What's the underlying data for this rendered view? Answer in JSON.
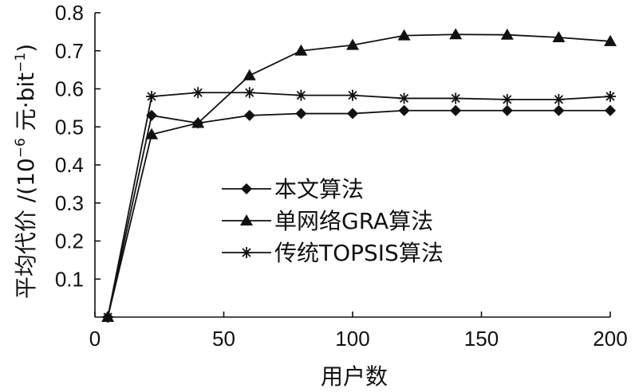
{
  "chart_data": {
    "type": "line",
    "xlabel": "用户数",
    "ylabel": "平均代价 /(10",
    "ylabel_exp": "−6",
    "ylabel_unit": " 元·bit",
    "ylabel_unit_exp": "−1",
    "ylabel_close": ")",
    "xlim": [
      0,
      200
    ],
    "ylim": [
      0,
      0.8
    ],
    "xticks": [
      0,
      50,
      100,
      150,
      200
    ],
    "xtick_labels": [
      "0",
      "50",
      "100",
      "150",
      "200"
    ],
    "yticks": [
      0.1,
      0.2,
      0.3,
      0.4,
      0.5,
      0.6,
      0.7,
      0.8
    ],
    "ytick_labels": [
      "0.1",
      "0.2",
      "0.3",
      "0.4",
      "0.5",
      "0.6",
      "0.7",
      "0.8"
    ],
    "grid": false,
    "legend_position": "center-right",
    "series": [
      {
        "name": "本文算法",
        "marker": "diamond",
        "color": "#111111",
        "x": [
          5,
          22,
          40,
          60,
          80,
          100,
          120,
          140,
          160,
          180,
          200
        ],
        "y": [
          0.0,
          0.53,
          0.51,
          0.53,
          0.535,
          0.535,
          0.543,
          0.543,
          0.543,
          0.543,
          0.543
        ]
      },
      {
        "name": "单网络GRA算法",
        "marker": "triangle",
        "color": "#111111",
        "x": [
          5,
          22,
          40,
          60,
          80,
          100,
          120,
          140,
          160,
          180,
          200
        ],
        "y": [
          0.0,
          0.48,
          0.51,
          0.635,
          0.7,
          0.715,
          0.74,
          0.743,
          0.742,
          0.735,
          0.725
        ]
      },
      {
        "name": "传统TOPSIS算法",
        "marker": "asterisk",
        "color": "#111111",
        "x": [
          5,
          22,
          40,
          60,
          80,
          100,
          120,
          140,
          160,
          180,
          200
        ],
        "y": [
          0.0,
          0.58,
          0.59,
          0.59,
          0.583,
          0.583,
          0.575,
          0.575,
          0.572,
          0.572,
          0.58
        ]
      }
    ]
  }
}
